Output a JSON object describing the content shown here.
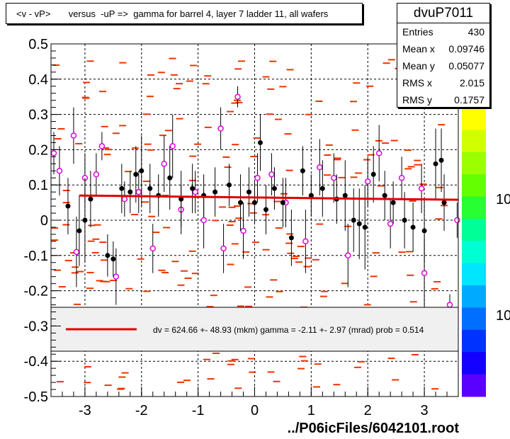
{
  "title": "<v - vP>       versus  -uP =>  gamma for barrel 4, layer 7 ladder 11, all wafers",
  "stats": {
    "name": "dvuP7011",
    "rows": [
      {
        "label": "Entries",
        "value": "430"
      },
      {
        "label": "Mean x",
        "value": "0.09746"
      },
      {
        "label": "Mean y",
        "value": "0.05077"
      },
      {
        "label": "RMS x",
        "value": "2.015"
      },
      {
        "label": "RMS y",
        "value": "0.1757"
      }
    ]
  },
  "legend": {
    "text": "dv =  624.66 +- 48.93 (mkm) gamma =   -2.11 +-  2.97 (mrad) prob = 0.514"
  },
  "colorbar": {
    "labels": [
      "10",
      "10"
    ],
    "colors": [
      "#ffff00",
      "#d2ff00",
      "#9bff00",
      "#64ff00",
      "#28ff32",
      "#00ff96",
      "#00ffd2",
      "#00e6ff",
      "#00aaff",
      "#006eff",
      "#0032ff",
      "#1400ff",
      "#5a00ff"
    ]
  },
  "footer": "../P06icFiles/6042101.root",
  "colors": {
    "fit_line": "#e00000",
    "black_points": "#000000",
    "pink_points": "#e000e0",
    "histogram_bins": "#ee3300",
    "grid": "#000000"
  },
  "chart_data": {
    "type": "scatter",
    "xlim": [
      -3.6,
      3.6
    ],
    "ylim": [
      -0.5,
      0.5
    ],
    "x_ticks": [
      "-3",
      "-2",
      "-1",
      "0",
      "1",
      "2",
      "3"
    ],
    "y_ticks": [
      "-0.5",
      "-0.4",
      "-0.3",
      "-0.2",
      "-0.1",
      "0",
      "0.1",
      "0.2",
      "0.3",
      "0.4",
      "0.5"
    ],
    "grid": true,
    "fit_line": {
      "x": [
        -3.1,
        3.6
      ],
      "y": [
        0.07,
        0.058
      ]
    },
    "black_series": [
      {
        "x": -3.3,
        "y": 0.04,
        "e": 0.08
      },
      {
        "x": -3.1,
        "y": -0.03,
        "e": 0.1
      },
      {
        "x": -3.0,
        "y": 0.0,
        "e": 0.12
      },
      {
        "x": -2.9,
        "y": 0.06,
        "e": 0.08
      },
      {
        "x": -2.6,
        "y": -0.1,
        "e": 0.06
      },
      {
        "x": -2.5,
        "y": -0.11,
        "e": 0.05
      },
      {
        "x": -2.35,
        "y": 0.09,
        "e": 0.07
      },
      {
        "x": -2.2,
        "y": 0.08,
        "e": 0.06
      },
      {
        "x": -2.1,
        "y": 0.13,
        "e": 0.08
      },
      {
        "x": -2.0,
        "y": 0.14,
        "e": 0.1
      },
      {
        "x": -1.85,
        "y": 0.09,
        "e": 0.07
      },
      {
        "x": -1.7,
        "y": 0.07,
        "e": 0.06
      },
      {
        "x": -1.5,
        "y": 0.12,
        "e": 0.09
      },
      {
        "x": -1.3,
        "y": 0.06,
        "e": 0.08
      },
      {
        "x": -1.1,
        "y": 0.09,
        "e": 0.07
      },
      {
        "x": -0.9,
        "y": 0.07,
        "e": 0.06
      },
      {
        "x": -0.7,
        "y": 0.08,
        "e": 0.07
      },
      {
        "x": -0.45,
        "y": 0.1,
        "e": 0.06
      },
      {
        "x": -0.25,
        "y": 0.05,
        "e": 0.08
      },
      {
        "x": -0.1,
        "y": 0.08,
        "e": 0.07
      },
      {
        "x": 0.0,
        "y": 0.05,
        "e": 0.06
      },
      {
        "x": 0.1,
        "y": 0.22,
        "e": 0.08
      },
      {
        "x": 0.2,
        "y": 0.03,
        "e": 0.07
      },
      {
        "x": 0.35,
        "y": 0.09,
        "e": 0.06
      },
      {
        "x": 0.5,
        "y": 0.05,
        "e": 0.07
      },
      {
        "x": 0.65,
        "y": -0.05,
        "e": 0.08
      },
      {
        "x": 0.85,
        "y": 0.14,
        "e": 0.07
      },
      {
        "x": 1.0,
        "y": 0.07,
        "e": 0.06
      },
      {
        "x": 1.2,
        "y": 0.09,
        "e": 0.08
      },
      {
        "x": 1.45,
        "y": 0.06,
        "e": 0.07
      },
      {
        "x": 1.6,
        "y": 0.07,
        "e": 0.1
      },
      {
        "x": 1.75,
        "y": 0.0,
        "e": 0.09
      },
      {
        "x": 1.85,
        "y": -0.01,
        "e": 0.1
      },
      {
        "x": 1.95,
        "y": -0.02,
        "e": 0.12
      },
      {
        "x": 2.1,
        "y": 0.13,
        "e": 0.08
      },
      {
        "x": 2.3,
        "y": 0.07,
        "e": 0.07
      },
      {
        "x": 2.45,
        "y": 0.05,
        "e": 0.06
      },
      {
        "x": 2.65,
        "y": 0.0,
        "e": 0.08
      },
      {
        "x": 2.8,
        "y": -0.02,
        "e": 0.07
      },
      {
        "x": 3.0,
        "y": -0.03,
        "e": 0.09
      },
      {
        "x": 3.2,
        "y": 0.16,
        "e": 0.1
      },
      {
        "x": 3.3,
        "y": 0.17,
        "e": 0.09
      },
      {
        "x": 3.35,
        "y": 0.05,
        "e": 0.08
      }
    ],
    "pink_series": [
      {
        "x": -3.55,
        "y": 0.19,
        "e": 0.06
      },
      {
        "x": -3.45,
        "y": 0.14,
        "e": 0.07
      },
      {
        "x": -3.2,
        "y": 0.24,
        "e": 0.08
      },
      {
        "x": -3.15,
        "y": -0.09,
        "e": 0.1
      },
      {
        "x": -3.0,
        "y": 0.12,
        "e": 0.07
      },
      {
        "x": -2.8,
        "y": 0.13,
        "e": 0.06
      },
      {
        "x": -2.7,
        "y": 0.21,
        "e": 0.04
      },
      {
        "x": -2.45,
        "y": -0.16,
        "e": 0.08
      },
      {
        "x": -2.3,
        "y": 0.06,
        "e": 0.05
      },
      {
        "x": -2.05,
        "y": 0.08,
        "e": 0.06
      },
      {
        "x": -1.8,
        "y": -0.08,
        "e": 0.07
      },
      {
        "x": -1.6,
        "y": 0.16,
        "e": 0.08
      },
      {
        "x": -1.45,
        "y": 0.21,
        "e": 0.09
      },
      {
        "x": -1.3,
        "y": 0.03,
        "e": 0.07
      },
      {
        "x": -1.05,
        "y": 0.08,
        "e": 0.06
      },
      {
        "x": -0.9,
        "y": 0.0,
        "e": 0.08
      },
      {
        "x": -0.6,
        "y": 0.26,
        "e": 0.06
      },
      {
        "x": -0.55,
        "y": -0.08,
        "e": 0.07
      },
      {
        "x": -0.3,
        "y": 0.35,
        "e": 0.03
      },
      {
        "x": -0.2,
        "y": -0.03,
        "e": 0.08
      },
      {
        "x": 0.05,
        "y": 0.12,
        "e": 0.07
      },
      {
        "x": 0.3,
        "y": 0.13,
        "e": 0.06
      },
      {
        "x": 0.55,
        "y": 0.05,
        "e": 0.07
      },
      {
        "x": 0.9,
        "y": -0.06,
        "e": 0.09
      },
      {
        "x": 1.15,
        "y": 0.15,
        "e": 0.08
      },
      {
        "x": 1.4,
        "y": 0.12,
        "e": 0.07
      },
      {
        "x": 1.65,
        "y": -0.1,
        "e": 0.09
      },
      {
        "x": 2.0,
        "y": 0.11,
        "e": 0.07
      },
      {
        "x": 2.2,
        "y": 0.19,
        "e": 0.08
      },
      {
        "x": 2.4,
        "y": -0.01,
        "e": 0.07
      },
      {
        "x": 2.6,
        "y": 0.12,
        "e": 0.06
      },
      {
        "x": 2.95,
        "y": 0.09,
        "e": 0.07
      },
      {
        "x": 3.0,
        "y": -0.15,
        "e": 0.1
      },
      {
        "x": 3.45,
        "y": -0.24,
        "e": 0.03
      },
      {
        "x": 3.58,
        "y": 0.0,
        "e": 0.05
      }
    ]
  }
}
